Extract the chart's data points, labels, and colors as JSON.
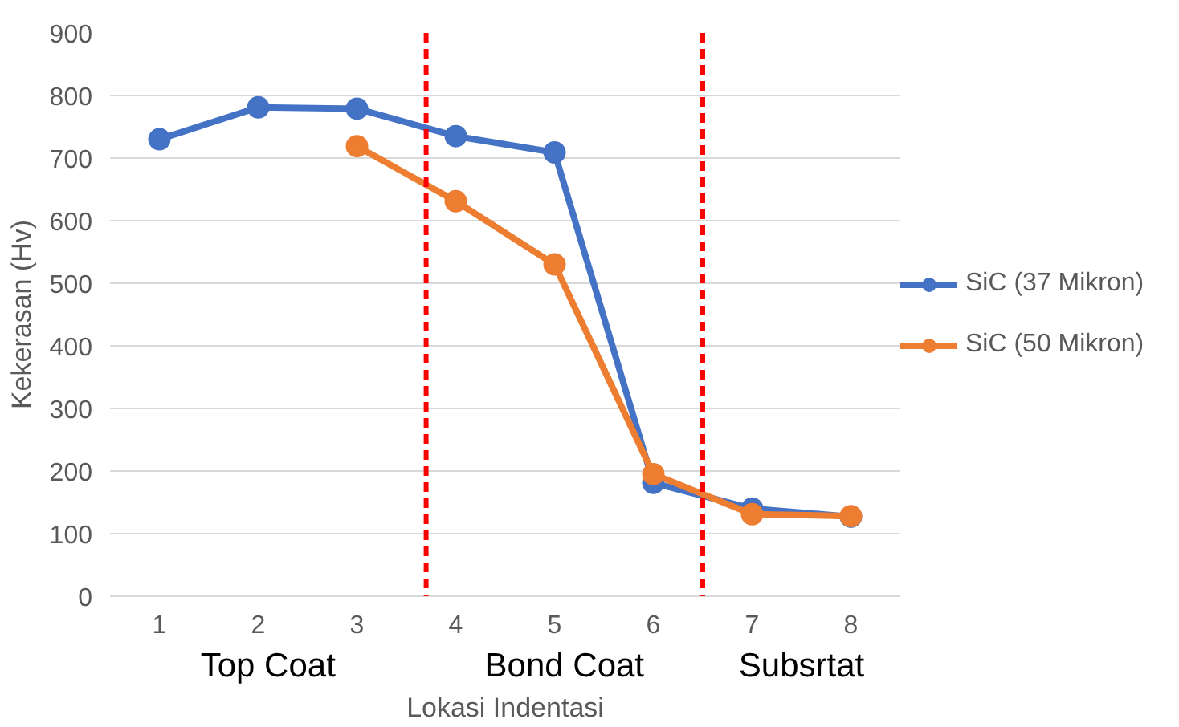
{
  "chart_data": {
    "type": "line",
    "xlabel": "Lokasi Indentasi",
    "ylabel": "Kekerasan (Hv)",
    "x": [
      1,
      2,
      3,
      4,
      5,
      6,
      7,
      8
    ],
    "xlim": [
      0.5,
      8.5
    ],
    "xticks": [
      1,
      2,
      3,
      4,
      5,
      6,
      7,
      8
    ],
    "ylim": [
      0,
      900
    ],
    "yticks": [
      0,
      100,
      200,
      300,
      400,
      500,
      600,
      700,
      800,
      900
    ],
    "series": [
      {
        "name": "SiC (37 Mikron)",
        "color": "#4472c4",
        "values": [
          730,
          781,
          779,
          735,
          709,
          181,
          140,
          127
        ]
      },
      {
        "name": "SiC (50 Mikron)",
        "color": "#ed7d31",
        "values": [
          null,
          null,
          719,
          631,
          530,
          195,
          131,
          128
        ]
      }
    ],
    "ref_lines": [
      {
        "axis": "x",
        "value": 3.7,
        "color": "#ff0000",
        "line_style": "dashed"
      },
      {
        "axis": "x",
        "value": 6.5,
        "color": "#ff0000",
        "line_style": "dashed"
      }
    ],
    "annotations": [
      "Top Coat",
      "Bond Coat",
      "Subsrtat"
    ],
    "grid": "y",
    "legend": "right",
    "marker": "circle",
    "line_style": "solid"
  }
}
